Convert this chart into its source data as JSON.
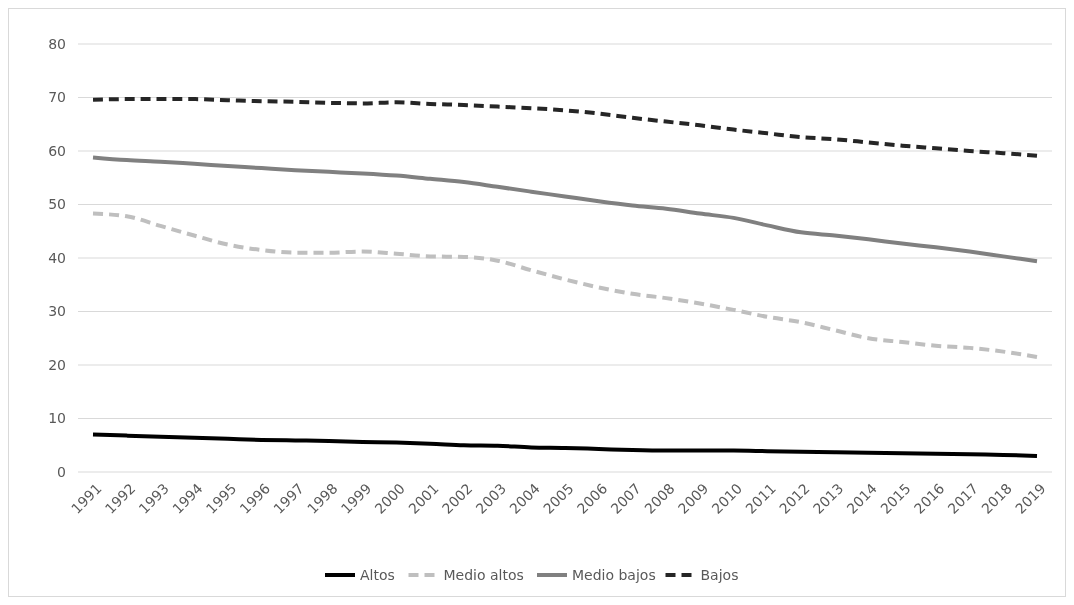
{
  "chart_data": {
    "type": "line",
    "categories": [
      "1991",
      "1992",
      "1993",
      "1994",
      "1995",
      "1996",
      "1997",
      "1998",
      "1999",
      "2000",
      "2001",
      "2002",
      "2003",
      "2004",
      "2005",
      "2006",
      "2007",
      "2008",
      "2009",
      "2010",
      "2011",
      "2012",
      "2013",
      "2014",
      "2015",
      "2016",
      "2017",
      "2018",
      "2019"
    ],
    "series": [
      {
        "name": "Altos",
        "color": "#000000",
        "line_style": "solid",
        "values": [
          7.0,
          6.8,
          6.6,
          6.4,
          6.2,
          6.0,
          5.9,
          5.8,
          5.6,
          5.5,
          5.3,
          5.0,
          4.9,
          4.6,
          4.5,
          4.3,
          4.1,
          4.0,
          4.0,
          4.0,
          3.9,
          3.8,
          3.7,
          3.6,
          3.5,
          3.4,
          3.3,
          3.2,
          3.0
        ]
      },
      {
        "name": "Medio altos",
        "color": "#bfbfbf",
        "line_style": "dashed",
        "values": [
          48.3,
          47.8,
          46.0,
          44.2,
          42.5,
          41.5,
          41.0,
          41.0,
          41.2,
          40.8,
          40.3,
          40.2,
          39.5,
          37.7,
          36.0,
          34.5,
          33.3,
          32.5,
          31.5,
          30.3,
          29.0,
          28.0,
          26.5,
          25.0,
          24.3,
          23.6,
          23.2,
          22.5,
          21.5
        ]
      },
      {
        "name": "Medio bajos",
        "color": "#808080",
        "line_style": "solid",
        "values": [
          58.8,
          58.3,
          58.0,
          57.6,
          57.2,
          56.8,
          56.4,
          56.1,
          55.8,
          55.4,
          54.8,
          54.2,
          53.3,
          52.4,
          51.5,
          50.6,
          49.8,
          49.2,
          48.3,
          47.5,
          46.1,
          44.8,
          44.2,
          43.5,
          42.7,
          42.0,
          41.2,
          40.3,
          39.4
        ]
      },
      {
        "name": "Bajos",
        "color": "#262626",
        "line_style": "dashed",
        "values": [
          69.6,
          69.7,
          69.7,
          69.7,
          69.5,
          69.3,
          69.2,
          69.0,
          68.9,
          69.1,
          68.8,
          68.6,
          68.3,
          68.0,
          67.6,
          67.0,
          66.2,
          65.5,
          64.8,
          64.0,
          63.3,
          62.6,
          62.2,
          61.6,
          61.0,
          60.5,
          60.0,
          59.6,
          59.1
        ]
      }
    ],
    "ylim": [
      0,
      80
    ],
    "yticks": [
      0,
      10,
      20,
      30,
      40,
      50,
      60,
      70,
      80
    ],
    "grid": "y",
    "legend": "bottom"
  }
}
